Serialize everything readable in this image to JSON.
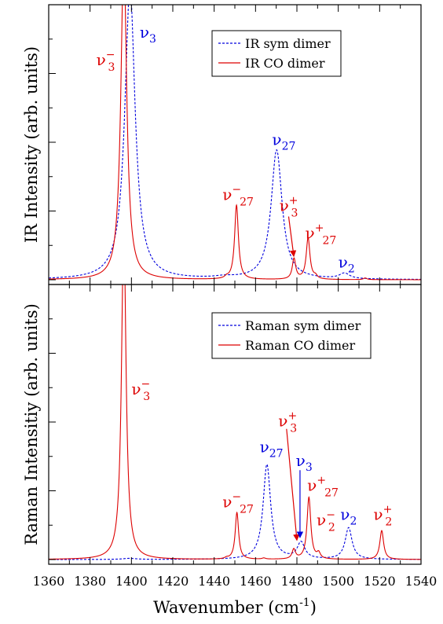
{
  "colors": {
    "sym": "#0000dd",
    "co": "#dd0000",
    "axis": "#000000"
  },
  "chart_data": [
    {
      "type": "line",
      "ylabel": "IR Intensity (arb. units)",
      "xlabel": "",
      "xlim": [
        1360,
        1540
      ],
      "ylim": [
        0,
        1.0
      ],
      "legend_position": "top-right",
      "series": [
        {
          "name": "IR sym dimer",
          "style": "dashed",
          "color": "#0000dd",
          "peaks": [
            {
              "x": 1399.3,
              "h": 1.06,
              "w": 3.0
            },
            {
              "x": 1470.2,
              "h": 0.47,
              "w": 3.2
            },
            {
              "x": 1503,
              "h": 0.02,
              "w": 3.0
            },
            {
              "x": 1445,
              "h": 0.006,
              "w": 6
            }
          ]
        },
        {
          "name": "IR CO dimer",
          "style": "solid",
          "color": "#dd0000",
          "peaks": [
            {
              "x": 1396.3,
              "h": 1.18,
              "w": 1.7
            },
            {
              "x": 1450.8,
              "h": 0.27,
              "w": 1.1
            },
            {
              "x": 1478.6,
              "h": 0.075,
              "w": 1.0
            },
            {
              "x": 1485.4,
              "h": 0.15,
              "w": 1.1
            },
            {
              "x": 1446,
              "h": 0.006,
              "w": 1.0
            },
            {
              "x": 1489,
              "h": 0.01,
              "w": 1.0
            },
            {
              "x": 1513,
              "h": 0.006,
              "w": 1.0
            }
          ]
        }
      ],
      "annotations": [
        {
          "text": "ν",
          "sub": "3",
          "sup": "−",
          "x": 1383,
          "y": 0.78,
          "color": "#dd0000"
        },
        {
          "text": "ν",
          "sub": "3",
          "sup": "",
          "x": 1404,
          "y": 0.88,
          "color": "#0000dd"
        },
        {
          "text": "ν",
          "sub": "27",
          "sup": "",
          "x": 1468,
          "y": 0.49,
          "color": "#0000dd"
        },
        {
          "text": "ν",
          "sub": "27",
          "sup": "−",
          "x": 1444,
          "y": 0.29,
          "color": "#dd0000"
        },
        {
          "text": "ν",
          "sub": "3",
          "sup": "+",
          "x": 1471.5,
          "y": 0.25,
          "color": "#dd0000"
        },
        {
          "text": "ν",
          "sub": "27",
          "sup": "+",
          "x": 1484,
          "y": 0.15,
          "color": "#dd0000"
        },
        {
          "text": "ν",
          "sub": "2",
          "sup": "",
          "x": 1500,
          "y": 0.045,
          "color": "#0000dd"
        }
      ],
      "arrows": [
        {
          "x1": 1476,
          "y1": 0.23,
          "x2": 1478.5,
          "y2": 0.085,
          "color": "#dd0000"
        }
      ]
    },
    {
      "type": "line",
      "ylabel": "Raman Intensitiy (arb. units)",
      "xlabel": "Wavenumber (cm",
      "xlabel_sup": "-1",
      "xlabel_tail": ")",
      "xlim": [
        1360,
        1540
      ],
      "ylim": [
        0,
        1.0
      ],
      "legend_position": "top-right",
      "x_ticks": [
        1360,
        1380,
        1400,
        1420,
        1440,
        1460,
        1480,
        1500,
        1520,
        1540
      ],
      "series": [
        {
          "name": "Raman sym dimer",
          "style": "dashed",
          "color": "#0000dd",
          "peaks": [
            {
              "x": 1465.5,
              "h": 0.345,
              "w": 2.2
            },
            {
              "x": 1482,
              "h": 0.06,
              "w": 2.2
            },
            {
              "x": 1505,
              "h": 0.115,
              "w": 2.0
            },
            {
              "x": 1399,
              "h": 0.004,
              "w": 4
            }
          ]
        },
        {
          "name": "Raman CO dimer",
          "style": "solid",
          "color": "#dd0000",
          "peaks": [
            {
              "x": 1396.3,
              "h": 1.22,
              "w": 1.3
            },
            {
              "x": 1451,
              "h": 0.17,
              "w": 1.0
            },
            {
              "x": 1478.5,
              "h": 0.035,
              "w": 1.0
            },
            {
              "x": 1485.8,
              "h": 0.225,
              "w": 1.1
            },
            {
              "x": 1490.5,
              "h": 0.02,
              "w": 1.0
            },
            {
              "x": 1521,
              "h": 0.105,
              "w": 1.1
            },
            {
              "x": 1446,
              "h": 0.004,
              "w": 1.0
            },
            {
              "x": 1464,
              "h": 0.004,
              "w": 1.0
            }
          ]
        }
      ],
      "annotations": [
        {
          "text": "ν",
          "sub": "3",
          "sup": "−",
          "x": 1400,
          "y": 0.6,
          "color": "#dd0000"
        },
        {
          "text": "ν",
          "sub": "3",
          "sup": "+",
          "x": 1471,
          "y": 0.485,
          "color": "#dd0000"
        },
        {
          "text": "ν",
          "sub": "27",
          "sup": "",
          "x": 1462,
          "y": 0.39,
          "color": "#0000dd"
        },
        {
          "text": "ν",
          "sub": "3",
          "sup": "",
          "x": 1479.5,
          "y": 0.34,
          "color": "#0000dd"
        },
        {
          "text": "ν",
          "sub": "27",
          "sup": "+",
          "x": 1485,
          "y": 0.25,
          "color": "#dd0000"
        },
        {
          "text": "ν",
          "sub": "27",
          "sup": "−",
          "x": 1444,
          "y": 0.19,
          "color": "#dd0000"
        },
        {
          "text": "ν",
          "sub": "2",
          "sup": "−",
          "x": 1489.5,
          "y": 0.125,
          "color": "#dd0000"
        },
        {
          "text": "ν",
          "sub": "2",
          "sup": "",
          "x": 1501,
          "y": 0.145,
          "color": "#0000dd"
        },
        {
          "text": "ν",
          "sub": "2",
          "sup": "+",
          "x": 1517,
          "y": 0.145,
          "color": "#dd0000"
        }
      ],
      "arrows": [
        {
          "x1": 1475,
          "y1": 0.475,
          "x2": 1480,
          "y2": 0.07,
          "color": "#dd0000"
        },
        {
          "x1": 1481.5,
          "y1": 0.325,
          "x2": 1481.5,
          "y2": 0.08,
          "color": "#0000dd"
        }
      ]
    }
  ]
}
